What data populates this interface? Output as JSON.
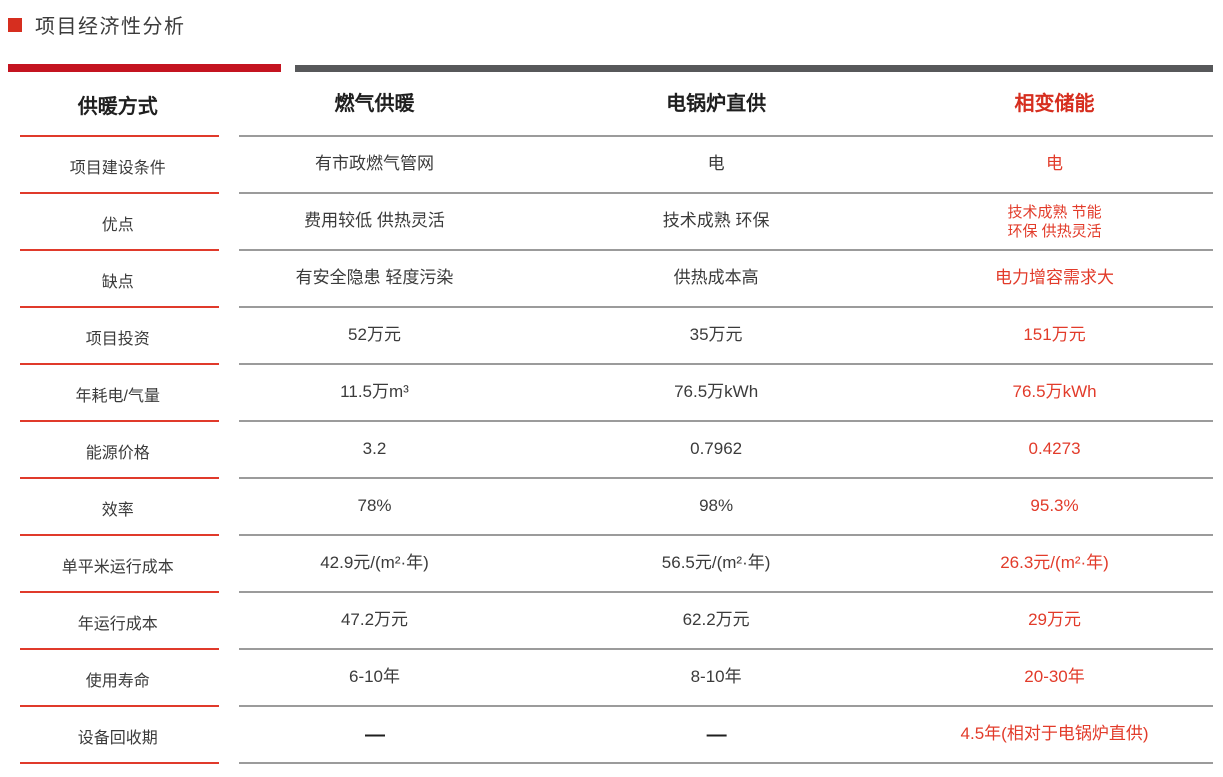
{
  "title": "项目经济性分析",
  "colors": {
    "accent_red_bar": "#c41420",
    "accent_red_line": "#e03a2b",
    "header_red": "#d62e1f",
    "cell_red": "#e23b2a",
    "gray_bar": "#57585a",
    "gray_line": "#9b9b9b",
    "text_dark": "#3b3b3b",
    "header_black": "#1f1f1f"
  },
  "table": {
    "header": {
      "label": "供暖方式",
      "columns": [
        "燃气供暖",
        "电锅炉直供",
        "相变储能"
      ]
    },
    "rows": [
      {
        "label": "项目建设条件",
        "cells": [
          "有市政燃气管网",
          "电",
          "电"
        ]
      },
      {
        "label": "优点",
        "cells": [
          "费用较低 供热灵活",
          "技术成熟 环保",
          [
            "技术成熟 节能",
            "环保 供热灵活"
          ]
        ]
      },
      {
        "label": "缺点",
        "cells": [
          "有安全隐患 轻度污染",
          "供热成本高",
          "电力增容需求大"
        ]
      },
      {
        "label": "项目投资",
        "cells": [
          "52万元",
          "35万元",
          "151万元"
        ]
      },
      {
        "label": "年耗电/气量",
        "cells": [
          "11.5万m³",
          "76.5万kWh",
          "76.5万kWh"
        ]
      },
      {
        "label": "能源价格",
        "cells": [
          "3.2",
          "0.7962",
          "0.4273"
        ]
      },
      {
        "label": "效率",
        "cells": [
          "78%",
          "98%",
          "95.3%"
        ]
      },
      {
        "label": "单平米运行成本",
        "cells": [
          "42.9元/(m²·年)",
          "56.5元/(m²·年)",
          "26.3元/(m²·年)"
        ]
      },
      {
        "label": "年运行成本",
        "cells": [
          "47.2万元",
          "62.2万元",
          "29万元"
        ]
      },
      {
        "label": "使用寿命",
        "cells": [
          "6-10年",
          "8-10年",
          "20-30年"
        ]
      },
      {
        "label": "设备回收期",
        "cells": [
          "—",
          "—",
          "4.5年(相对于电锅炉直供)"
        ]
      }
    ]
  }
}
